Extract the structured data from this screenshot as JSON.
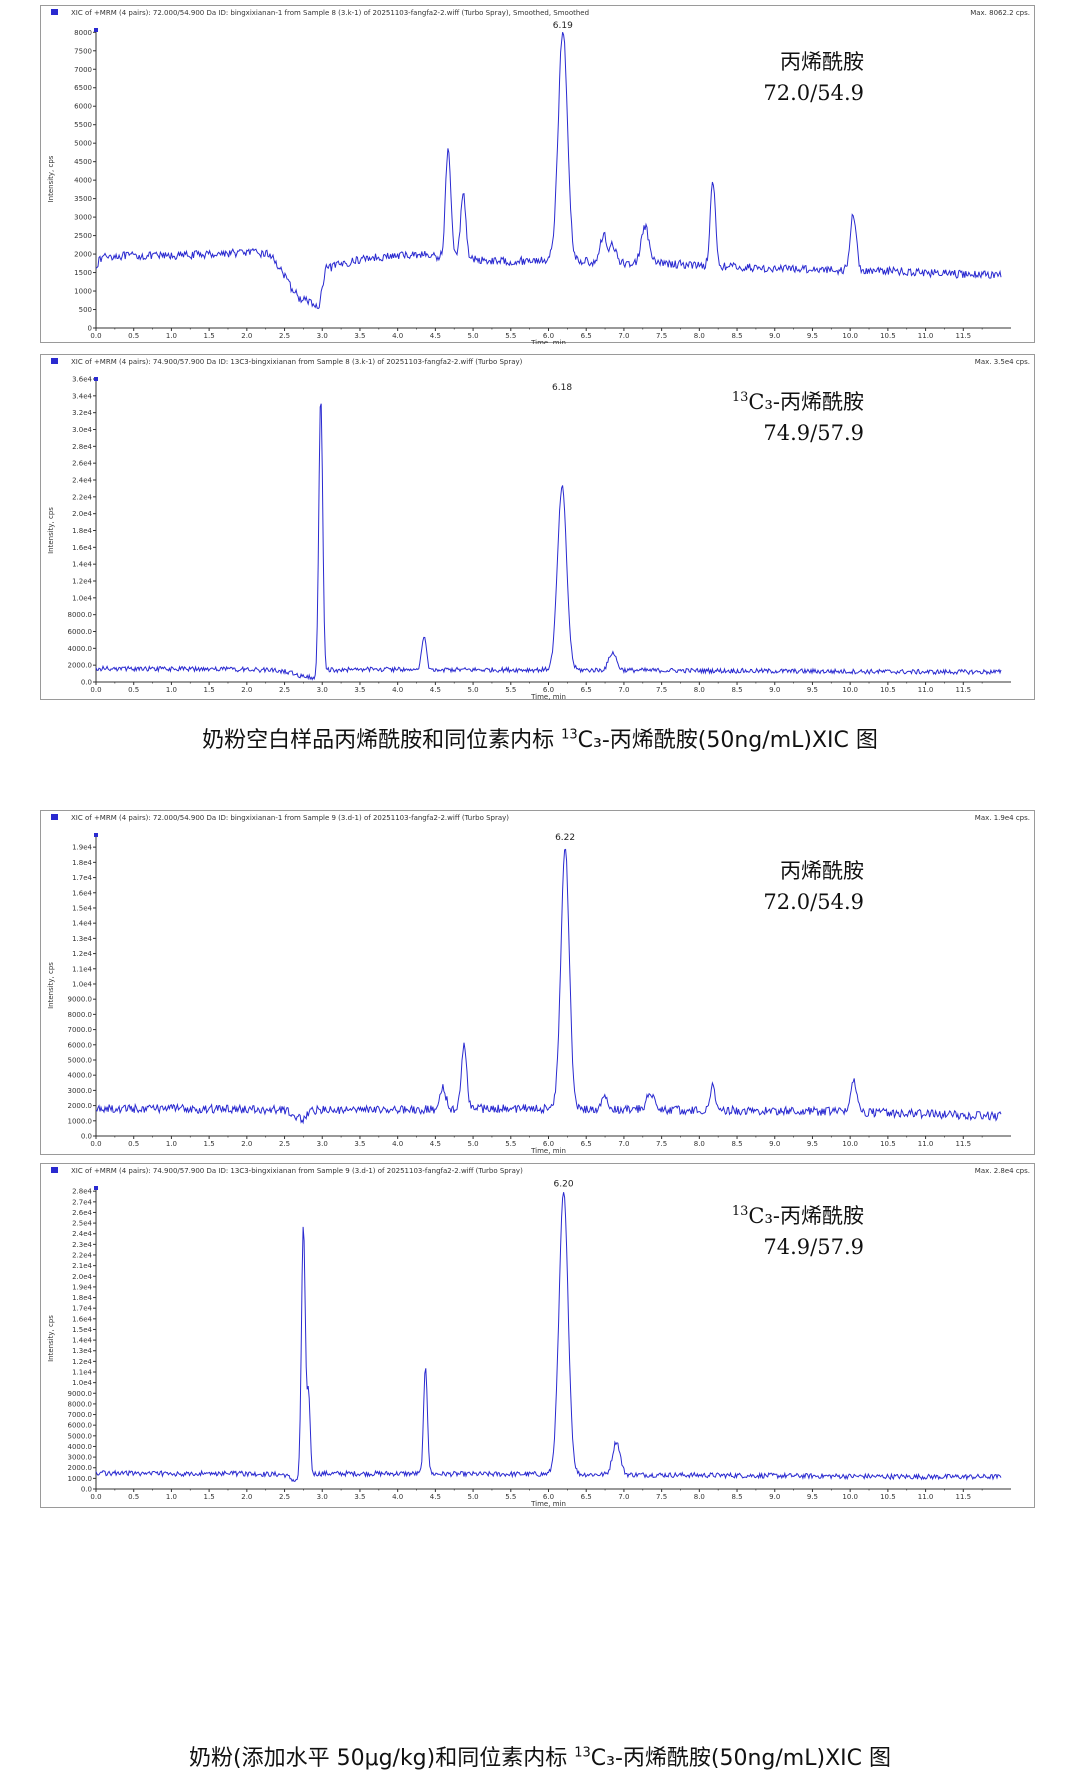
{
  "captions": {
    "first": {
      "pre": "奶粉空白样品丙烯酰胺和同位素内标 ",
      "sup": "13",
      "post": "C₃-丙烯酰胺(50ng/mL)XIC 图"
    },
    "second": {
      "pre": "奶粉(添加水平 50μg/kg)和同位素内标 ",
      "sup": "13",
      "post": "C₃-丙烯酰胺(50ng/mL)XIC 图"
    }
  },
  "colors": {
    "trace": "#2a2ad0",
    "axis": "#333333",
    "border": "#9a9a9a"
  },
  "chart_data": [
    {
      "type": "line",
      "header": "XIC of +MRM (4 pairs): 72.000/54.900 Da ID: bingxixianan-1 from Sample 8 (3.k-1) of 20251103-fangfa2-2.wiff (Turbo Spray), Smoothed, Smoothed",
      "max_label": "Max. 8062.2 cps.",
      "ann_sup": "",
      "ann_line1": "丙烯酰胺",
      "ann_line2": "72.0/54.9",
      "xlabel": "Time, min",
      "ylabel": "Intensity, cps",
      "xlim": [
        0,
        12
      ],
      "ylim": [
        0,
        8062.2
      ],
      "x_ticks": [
        "0.0",
        "0.5",
        "1.0",
        "1.5",
        "2.0",
        "2.5",
        "3.0",
        "3.5",
        "4.0",
        "4.5",
        "5.0",
        "5.5",
        "6.0",
        "6.5",
        "7.0",
        "7.5",
        "8.0",
        "8.5",
        "9.0",
        "9.5",
        "10.0",
        "10.5",
        "11.0",
        "11.5"
      ],
      "y_ticks": [
        [
          8000,
          "8000"
        ],
        [
          7500,
          "7500"
        ],
        [
          7000,
          "7000"
        ],
        [
          6500,
          "6500"
        ],
        [
          6000,
          "6000"
        ],
        [
          5500,
          "5500"
        ],
        [
          5000,
          "5000"
        ],
        [
          4500,
          "4500"
        ],
        [
          4000,
          "4000"
        ],
        [
          3500,
          "3500"
        ],
        [
          3000,
          "3000"
        ],
        [
          2500,
          "2500"
        ],
        [
          2000,
          "2000"
        ],
        [
          1500,
          "1500"
        ],
        [
          1000,
          "1000"
        ],
        [
          500,
          "500"
        ],
        [
          0,
          "0"
        ]
      ],
      "peak_label": {
        "x": 6.19,
        "text": "6.19"
      },
      "baseline": [
        [
          0,
          1700
        ],
        [
          0.1,
          1950
        ],
        [
          0.5,
          1950
        ],
        [
          1.0,
          1950
        ],
        [
          1.5,
          2000
        ],
        [
          2.0,
          2050
        ],
        [
          2.3,
          2000
        ],
        [
          2.45,
          1600
        ],
        [
          2.55,
          1200
        ],
        [
          2.7,
          800
        ],
        [
          2.85,
          700
        ],
        [
          2.95,
          500
        ],
        [
          3.05,
          1600
        ],
        [
          3.3,
          1750
        ],
        [
          3.6,
          1900
        ],
        [
          4.0,
          1950
        ],
        [
          4.3,
          2000
        ],
        [
          4.6,
          1900
        ],
        [
          5.0,
          1850
        ],
        [
          5.5,
          1800
        ],
        [
          6.0,
          1850
        ],
        [
          6.5,
          1800
        ],
        [
          7.0,
          1750
        ],
        [
          7.5,
          1750
        ],
        [
          8.0,
          1700
        ],
        [
          8.5,
          1650
        ],
        [
          9.0,
          1600
        ],
        [
          9.5,
          1600
        ],
        [
          10.0,
          1550
        ],
        [
          10.5,
          1550
        ],
        [
          11.0,
          1500
        ],
        [
          11.5,
          1450
        ],
        [
          12.0,
          1450
        ]
      ],
      "noise": 110,
      "peaks": [
        [
          4.67,
          2950,
          0.035
        ],
        [
          4.87,
          1800,
          0.035
        ],
        [
          6.19,
          6250,
          0.06
        ],
        [
          6.73,
          750,
          0.04
        ],
        [
          6.85,
          500,
          0.04
        ],
        [
          7.28,
          1000,
          0.05
        ],
        [
          8.18,
          2250,
          0.035
        ],
        [
          10.04,
          1550,
          0.04
        ]
      ]
    },
    {
      "type": "line",
      "header": "XIC of +MRM (4 pairs): 74.900/57.900 Da ID: 13C3-bingxixianan from Sample 8 (3.k-1) of 20251103-fangfa2-2.wiff (Turbo Spray)",
      "max_label": "Max. 3.5e4 cps.",
      "ann_sup": "13",
      "ann_line1": "C₃-丙烯酰胺",
      "ann_line2": "74.9/57.9",
      "xlabel": "Time, min",
      "ylabel": "Intensity, cps",
      "xlim": [
        0,
        12
      ],
      "ylim": [
        0,
        36000
      ],
      "x_ticks": [
        "0.0",
        "0.5",
        "1.0",
        "1.5",
        "2.0",
        "2.5",
        "3.0",
        "3.5",
        "4.0",
        "4.5",
        "5.0",
        "5.5",
        "6.0",
        "6.5",
        "7.0",
        "7.5",
        "8.0",
        "8.5",
        "9.0",
        "9.5",
        "10.0",
        "10.5",
        "11.0",
        "11.5"
      ],
      "y_ticks": [
        [
          36000,
          "3.6e4"
        ],
        [
          34000,
          "3.4e4"
        ],
        [
          32000,
          "3.2e4"
        ],
        [
          30000,
          "3.0e4"
        ],
        [
          28000,
          "2.8e4"
        ],
        [
          26000,
          "2.6e4"
        ],
        [
          24000,
          "2.4e4"
        ],
        [
          22000,
          "2.2e4"
        ],
        [
          20000,
          "2.0e4"
        ],
        [
          18000,
          "1.8e4"
        ],
        [
          16000,
          "1.6e4"
        ],
        [
          14000,
          "1.4e4"
        ],
        [
          12000,
          "1.2e4"
        ],
        [
          10000,
          "1.0e4"
        ],
        [
          8000,
          "8000.0"
        ],
        [
          6000,
          "6000.0"
        ],
        [
          4000,
          "4000.0"
        ],
        [
          2000,
          "2000.0"
        ],
        [
          0,
          "0.0"
        ]
      ],
      "peak_label": {
        "x": 6.18,
        "text": "6.18"
      },
      "baseline": [
        [
          0,
          1600
        ],
        [
          1.0,
          1550
        ],
        [
          2.0,
          1500
        ],
        [
          2.5,
          1300
        ],
        [
          2.7,
          800
        ],
        [
          2.9,
          500
        ],
        [
          3.05,
          1400
        ],
        [
          3.5,
          1500
        ],
        [
          4.0,
          1500
        ],
        [
          5.0,
          1450
        ],
        [
          6.0,
          1450
        ],
        [
          7.0,
          1400
        ],
        [
          8.0,
          1350
        ],
        [
          9.0,
          1300
        ],
        [
          10.0,
          1250
        ],
        [
          11.0,
          1200
        ],
        [
          12.0,
          1200
        ]
      ],
      "noise": 280,
      "peaks": [
        [
          2.98,
          33000,
          0.025
        ],
        [
          4.35,
          4000,
          0.03
        ],
        [
          6.18,
          21800,
          0.06
        ],
        [
          6.85,
          2100,
          0.05
        ]
      ]
    },
    {
      "type": "line",
      "header": "XIC of +MRM (4 pairs): 72.000/54.900 Da ID: bingxixianan-1 from Sample 9 (3.d-1) of 20251103-fangfa2-2.wiff (Turbo Spray)",
      "max_label": "Max. 1.9e4 cps.",
      "ann_sup": "",
      "ann_line1": "丙烯酰胺",
      "ann_line2": "72.0/54.9",
      "xlabel": "Time, min",
      "ylabel": "Intensity, cps",
      "xlim": [
        0,
        12
      ],
      "ylim": [
        0,
        19800
      ],
      "x_ticks": [
        "0.0",
        "0.5",
        "1.0",
        "1.5",
        "2.0",
        "2.5",
        "3.0",
        "3.5",
        "4.0",
        "4.5",
        "5.0",
        "5.5",
        "6.0",
        "6.5",
        "7.0",
        "7.5",
        "8.0",
        "8.5",
        "9.0",
        "9.5",
        "10.0",
        "10.5",
        "11.0",
        "11.5"
      ],
      "y_ticks": [
        [
          19000,
          "1.9e4"
        ],
        [
          18000,
          "1.8e4"
        ],
        [
          17000,
          "1.7e4"
        ],
        [
          16000,
          "1.6e4"
        ],
        [
          15000,
          "1.5e4"
        ],
        [
          14000,
          "1.4e4"
        ],
        [
          13000,
          "1.3e4"
        ],
        [
          12000,
          "1.2e4"
        ],
        [
          11000,
          "1.1e4"
        ],
        [
          10000,
          "1.0e4"
        ],
        [
          9000,
          "9000.0"
        ],
        [
          8000,
          "8000.0"
        ],
        [
          7000,
          "7000.0"
        ],
        [
          6000,
          "6000.0"
        ],
        [
          5000,
          "5000.0"
        ],
        [
          4000,
          "4000.0"
        ],
        [
          3000,
          "3000.0"
        ],
        [
          2000,
          "2000.0"
        ],
        [
          1000,
          "1000.0"
        ],
        [
          0,
          "0.0"
        ]
      ],
      "peak_label": {
        "x": 6.22,
        "text": "6.22"
      },
      "baseline": [
        [
          0,
          1800
        ],
        [
          1.0,
          1800
        ],
        [
          2.0,
          1750
        ],
        [
          2.5,
          1700
        ],
        [
          2.75,
          1050
        ],
        [
          2.85,
          1700
        ],
        [
          3.5,
          1700
        ],
        [
          4.5,
          1750
        ],
        [
          5.0,
          1800
        ],
        [
          6.0,
          1800
        ],
        [
          7.0,
          1750
        ],
        [
          8.0,
          1700
        ],
        [
          9.0,
          1650
        ],
        [
          10.0,
          1600
        ],
        [
          11.0,
          1450
        ],
        [
          12.0,
          1300
        ]
      ],
      "noise": 280,
      "peaks": [
        [
          4.6,
          1400,
          0.04
        ],
        [
          4.88,
          4200,
          0.035
        ],
        [
          6.22,
          17300,
          0.055
        ],
        [
          6.75,
          1000,
          0.04
        ],
        [
          7.35,
          1100,
          0.05
        ],
        [
          8.18,
          1800,
          0.03
        ],
        [
          10.05,
          2100,
          0.04
        ]
      ]
    },
    {
      "type": "line",
      "header": "XIC of +MRM (4 pairs): 74.900/57.900 Da ID: 13C3-bingxixianan from Sample 9 (3.d-1) of 20251103-fangfa2-2.wiff (Turbo Spray)",
      "max_label": "Max. 2.8e4 cps.",
      "ann_sup": "13",
      "ann_line1": "C₃-丙烯酰胺",
      "ann_line2": "74.9/57.9",
      "xlabel": "Time, min",
      "ylabel": "Intensity, cps",
      "xlim": [
        0,
        12
      ],
      "ylim": [
        0,
        28300
      ],
      "x_ticks": [
        "0.0",
        "0.5",
        "1.0",
        "1.5",
        "2.0",
        "2.5",
        "3.0",
        "3.5",
        "4.0",
        "4.5",
        "5.0",
        "5.5",
        "6.0",
        "6.5",
        "7.0",
        "7.5",
        "8.0",
        "8.5",
        "9.0",
        "9.5",
        "10.0",
        "10.5",
        "11.0",
        "11.5"
      ],
      "y_ticks": [
        [
          28000,
          "2.8e4"
        ],
        [
          27000,
          "2.7e4"
        ],
        [
          26000,
          "2.6e4"
        ],
        [
          25000,
          "2.5e4"
        ],
        [
          24000,
          "2.4e4"
        ],
        [
          23000,
          "2.3e4"
        ],
        [
          22000,
          "2.2e4"
        ],
        [
          21000,
          "2.1e4"
        ],
        [
          20000,
          "2.0e4"
        ],
        [
          19000,
          "1.9e4"
        ],
        [
          18000,
          "1.8e4"
        ],
        [
          17000,
          "1.7e4"
        ],
        [
          16000,
          "1.6e4"
        ],
        [
          15000,
          "1.5e4"
        ],
        [
          14000,
          "1.4e4"
        ],
        [
          13000,
          "1.3e4"
        ],
        [
          12000,
          "1.2e4"
        ],
        [
          11000,
          "1.1e4"
        ],
        [
          10000,
          "1.0e4"
        ],
        [
          9000,
          "9000.0"
        ],
        [
          8000,
          "8000.0"
        ],
        [
          7000,
          "7000.0"
        ],
        [
          6000,
          "6000.0"
        ],
        [
          5000,
          "5000.0"
        ],
        [
          4000,
          "4000.0"
        ],
        [
          3000,
          "3000.0"
        ],
        [
          2000,
          "2000.0"
        ],
        [
          1000,
          "1000.0"
        ],
        [
          0,
          "0.0"
        ]
      ],
      "peak_label": {
        "x": 6.2,
        "text": "6.20"
      },
      "baseline": [
        [
          0,
          1500
        ],
        [
          1.0,
          1450
        ],
        [
          2.0,
          1450
        ],
        [
          2.5,
          1350
        ],
        [
          2.65,
          700
        ],
        [
          2.75,
          1400
        ],
        [
          3.0,
          1450
        ],
        [
          4.0,
          1450
        ],
        [
          5.0,
          1400
        ],
        [
          6.0,
          1400
        ],
        [
          7.0,
          1350
        ],
        [
          8.0,
          1300
        ],
        [
          9.0,
          1250
        ],
        [
          10.0,
          1200
        ],
        [
          11.0,
          1150
        ],
        [
          12.0,
          1150
        ]
      ],
      "noise": 240,
      "peaks": [
        [
          2.75,
          23500,
          0.025
        ],
        [
          2.82,
          7500,
          0.02
        ],
        [
          4.37,
          10100,
          0.025
        ],
        [
          6.2,
          26500,
          0.06
        ],
        [
          6.9,
          3100,
          0.05
        ]
      ]
    }
  ]
}
